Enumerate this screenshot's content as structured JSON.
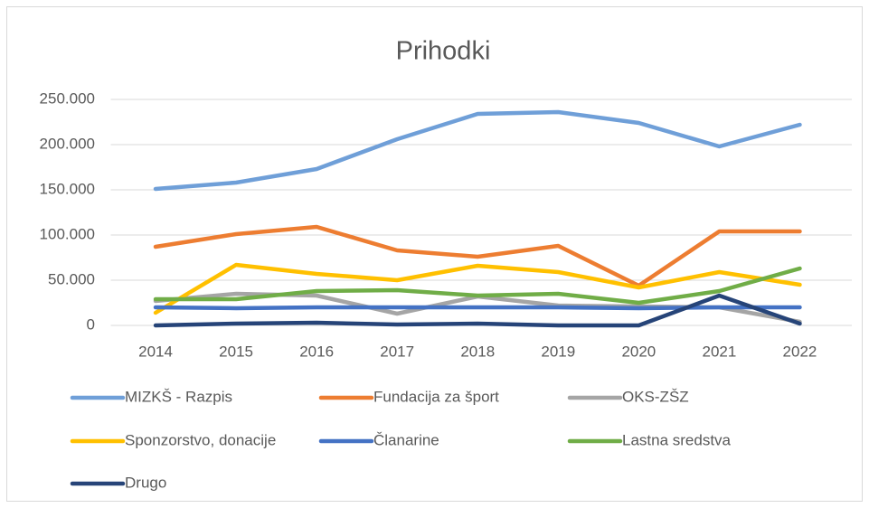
{
  "chart_data": {
    "type": "line",
    "title": "Prihodki",
    "categories": [
      "2014",
      "2015",
      "2016",
      "2017",
      "2018",
      "2019",
      "2020",
      "2021",
      "2022"
    ],
    "series": [
      {
        "name": "MIZKŠ - Razpis",
        "color": "#6f9fd8",
        "values": [
          151000,
          158000,
          173000,
          206000,
          234000,
          236000,
          224000,
          198000,
          222000
        ]
      },
      {
        "name": "Fundacija za šport",
        "color": "#ed7d31",
        "values": [
          87000,
          101000,
          109000,
          83000,
          76000,
          88000,
          44000,
          104000,
          104000
        ]
      },
      {
        "name": "OKS-ZŠZ",
        "color": "#a5a5a5",
        "values": [
          27000,
          35000,
          33000,
          13000,
          32000,
          22000,
          21000,
          20000,
          4000
        ]
      },
      {
        "name": "Sponzorstvo, donacije",
        "color": "#ffc000",
        "values": [
          14000,
          67000,
          57000,
          50000,
          66000,
          59000,
          42000,
          59000,
          45000
        ]
      },
      {
        "name": "Članarine",
        "color": "#4472c4",
        "values": [
          20000,
          19000,
          20000,
          20000,
          20000,
          20000,
          19000,
          20000,
          20000
        ]
      },
      {
        "name": "Lastna sredstva",
        "color": "#70ad47",
        "values": [
          29000,
          29000,
          38000,
          39000,
          33000,
          35000,
          25000,
          38000,
          63000
        ]
      },
      {
        "name": "Drugo",
        "color": "#264478",
        "values": [
          0,
          2000,
          3000,
          1000,
          2000,
          0,
          0,
          33000,
          2000
        ]
      }
    ],
    "ylim": [
      0,
      250000
    ],
    "yticks": [
      0,
      {
        "value": 50000,
        "label": "50.000"
      },
      {
        "value": 100000,
        "label": "100.000"
      },
      {
        "value": 150000,
        "label": "150.000"
      },
      {
        "value": 200000,
        "label": "200.000"
      },
      {
        "value": 250000,
        "label": "250.000"
      }
    ],
    "grid": true,
    "legend": "bottom"
  }
}
